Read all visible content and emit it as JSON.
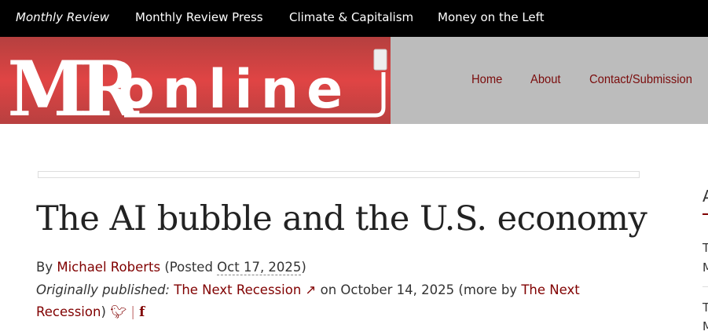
{
  "topbar": {
    "links": [
      "Monthly Review",
      "Monthly Review Press",
      "Climate & Capitalism",
      "Money on the Left"
    ]
  },
  "logo": {
    "text_mr": "MR",
    "text_online": "online"
  },
  "nav": {
    "items": [
      "Home",
      "About",
      "Contact/Submission"
    ]
  },
  "article": {
    "title": "The AI bubble and the U.S. economy",
    "by": "By",
    "author": "Michael Roberts",
    "posted_prefix": "(Posted",
    "date": "Oct 17, 2025",
    "posted_suffix": ")",
    "orig_label": "Originally published:",
    "orig_source": "The Next Recession",
    "orig_on": "on October 14, 2025 (more by",
    "more_by": "The Next Recession",
    "close": ")",
    "separator": "|"
  },
  "sidebar": {
    "heading": "A",
    "lines": [
      "T",
      "M",
      "T",
      "M"
    ]
  },
  "colors": {
    "link": "#800000",
    "logo_red": "#e04444",
    "header_gray": "#bcbcbc"
  }
}
